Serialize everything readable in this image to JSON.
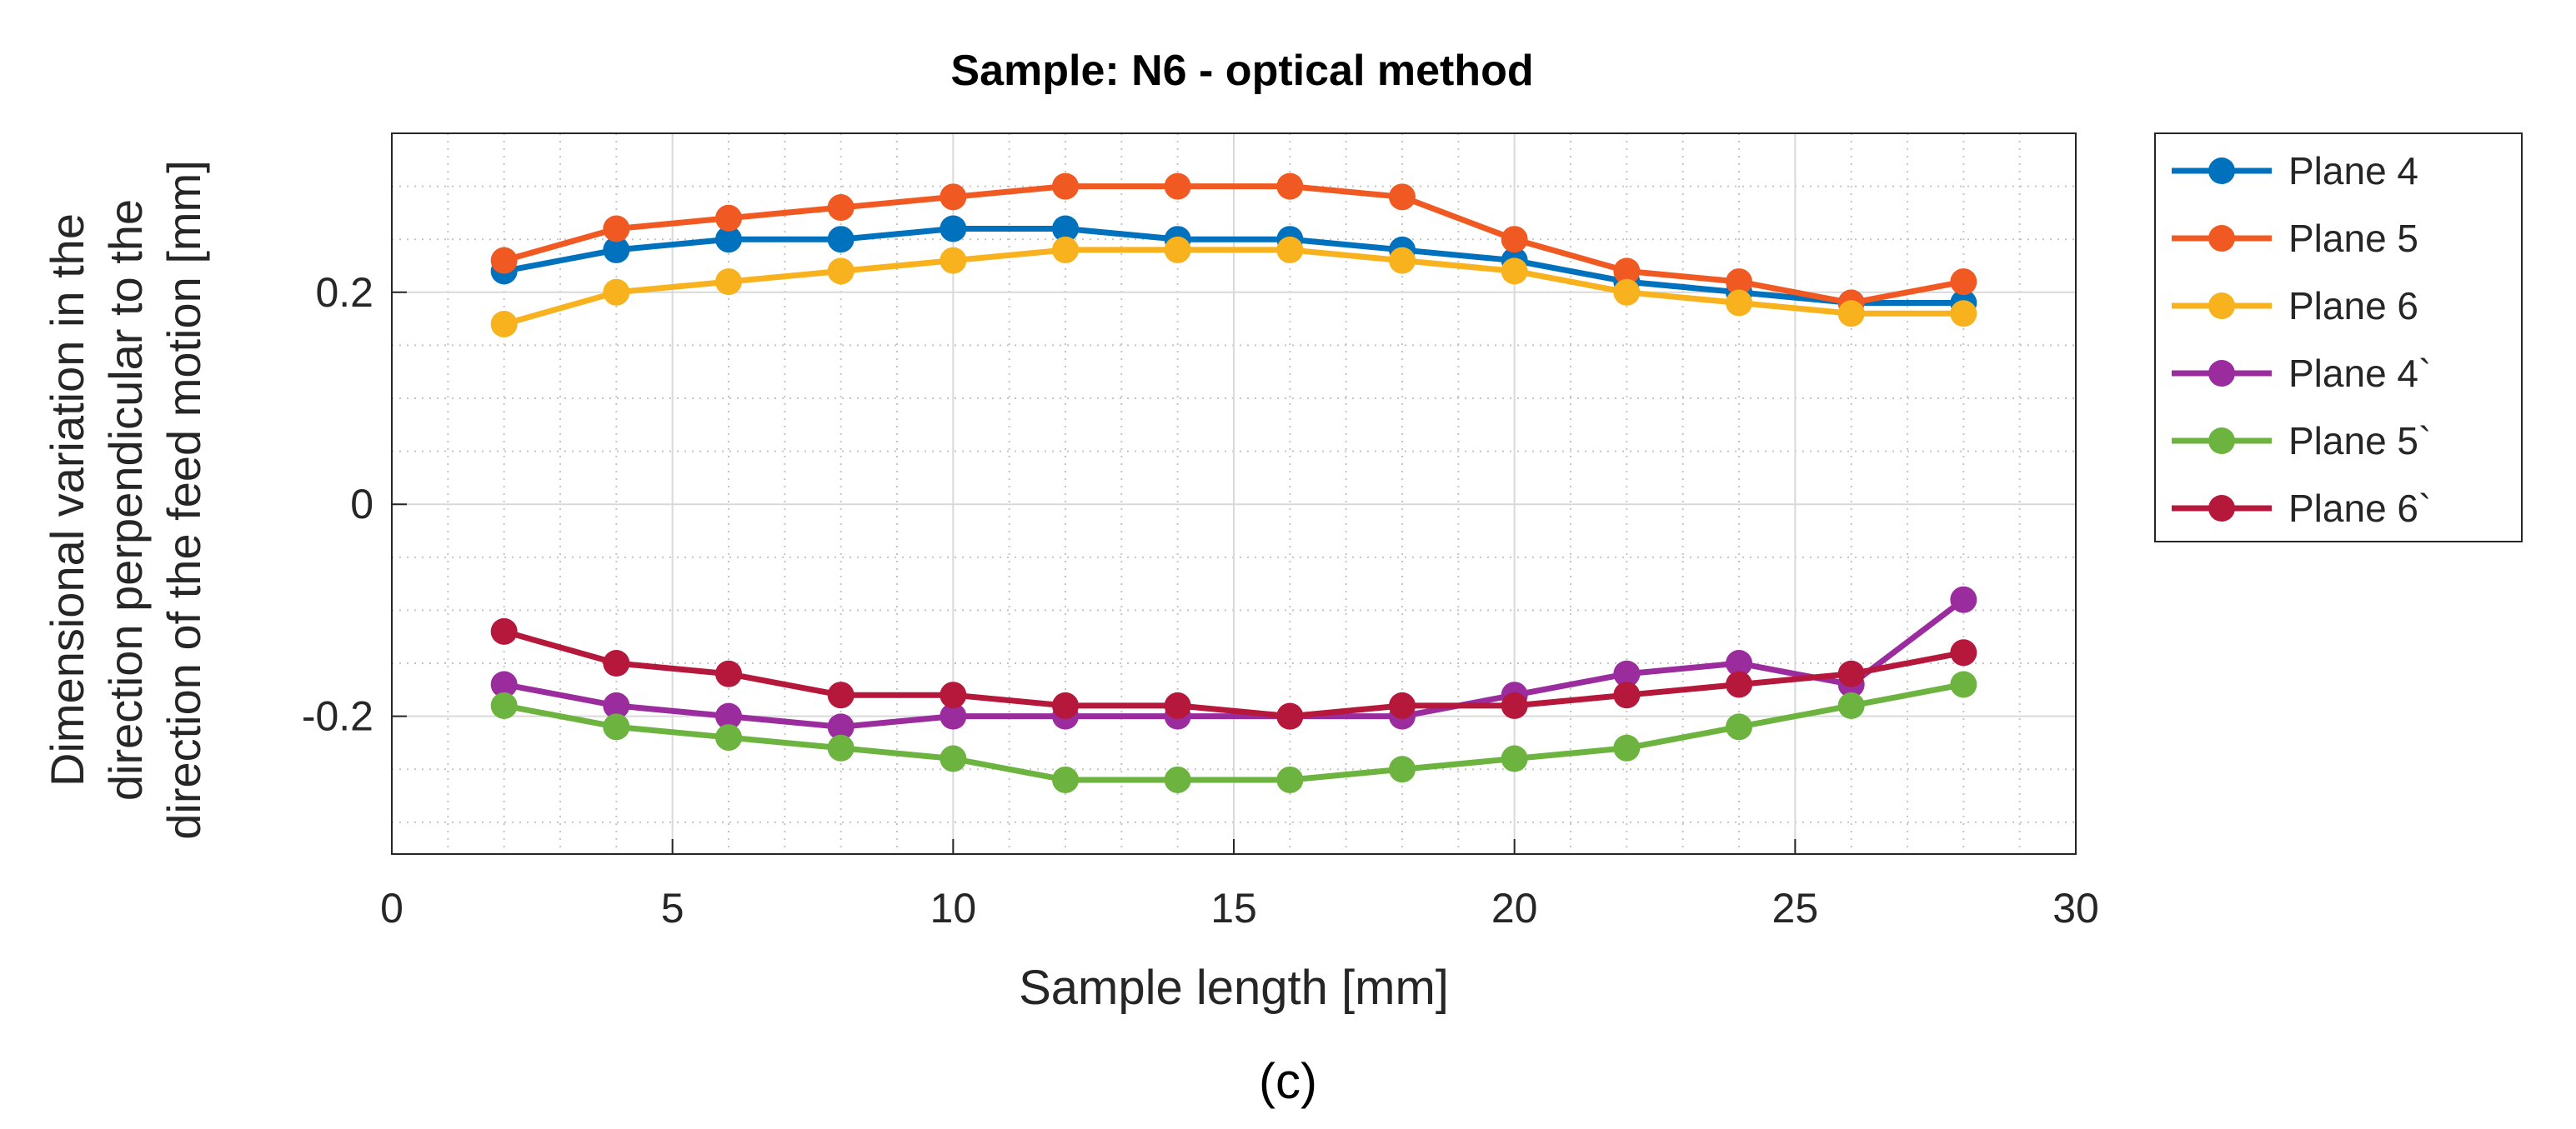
{
  "figure_label": "(c)",
  "chart_data": {
    "type": "line",
    "title": "Sample: N6 - optical method",
    "xlabel": "Sample length [mm]",
    "ylabel_lines": [
      "Dimensional variation in the",
      "direction perpendicular to the",
      "direction of the feed motion [mm]"
    ],
    "xlim": [
      0,
      30
    ],
    "ylim": [
      -0.33,
      0.35
    ],
    "xticks": [
      0,
      5,
      10,
      15,
      20,
      25,
      30
    ],
    "xtick_labels": [
      "0",
      "5",
      "10",
      "15",
      "20",
      "25",
      "30"
    ],
    "yticks": [
      -0.2,
      0,
      0.2
    ],
    "ytick_labels": [
      "-0.2",
      "0",
      "0.2"
    ],
    "grid": true,
    "minor_grid": true,
    "legend_position": "outside-right",
    "x": [
      2,
      4,
      6,
      8,
      10,
      12,
      14,
      16,
      18,
      20,
      22,
      24,
      26,
      28
    ],
    "series": [
      {
        "name": "Plane 4",
        "color": "#0072BD",
        "values": [
          0.22,
          0.24,
          0.25,
          0.25,
          0.26,
          0.26,
          0.25,
          0.25,
          0.24,
          0.23,
          0.21,
          0.2,
          0.19,
          0.19
        ]
      },
      {
        "name": "Plane 5",
        "color": "#F05A22",
        "values": [
          0.23,
          0.26,
          0.27,
          0.28,
          0.29,
          0.3,
          0.3,
          0.3,
          0.29,
          0.25,
          0.22,
          0.21,
          0.19,
          0.21
        ]
      },
      {
        "name": "Plane 6",
        "color": "#F7B21E",
        "values": [
          0.17,
          0.2,
          0.21,
          0.22,
          0.23,
          0.24,
          0.24,
          0.24,
          0.23,
          0.22,
          0.2,
          0.19,
          0.18,
          0.18
        ]
      },
      {
        "name": "Plane 4`",
        "color": "#9A2C9E",
        "values": [
          -0.17,
          -0.19,
          -0.2,
          -0.21,
          -0.2,
          -0.2,
          -0.2,
          -0.2,
          -0.2,
          -0.18,
          -0.16,
          -0.15,
          -0.17,
          -0.09
        ]
      },
      {
        "name": "Plane 5`",
        "color": "#6DB33F",
        "values": [
          -0.19,
          -0.21,
          -0.22,
          -0.23,
          -0.24,
          -0.26,
          -0.26,
          -0.26,
          -0.25,
          -0.24,
          -0.23,
          -0.21,
          -0.19,
          -0.17
        ]
      },
      {
        "name": "Plane 6`",
        "color": "#B5183A",
        "values": [
          -0.12,
          -0.15,
          -0.16,
          -0.18,
          -0.18,
          -0.19,
          -0.19,
          -0.2,
          -0.19,
          -0.19,
          -0.18,
          -0.17,
          -0.16,
          -0.14
        ]
      }
    ]
  }
}
